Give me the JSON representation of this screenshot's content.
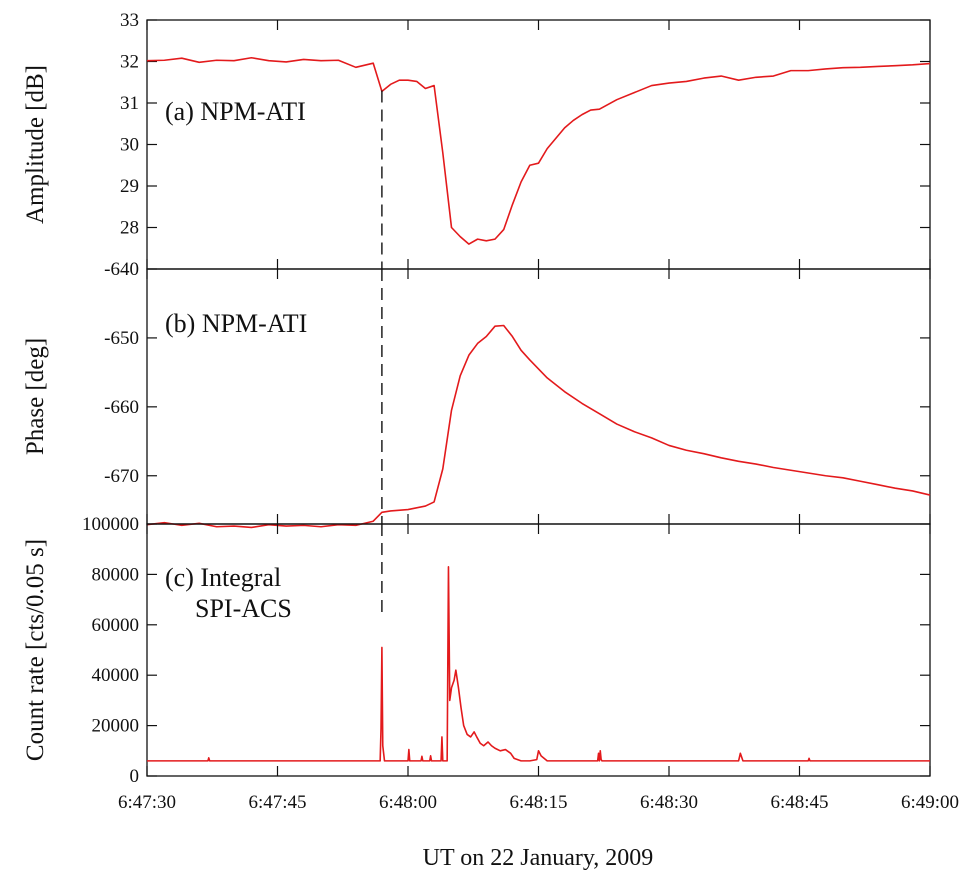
{
  "colors": {
    "series": "#e31a1c",
    "axis": "#111111",
    "marker": "#111111"
  },
  "xlabel": "UT on 22 January, 2009",
  "x_tick_labels": [
    "6:47:30",
    "6:47:45",
    "6:48:00",
    "6:48:15",
    "6:48:30",
    "6:48:45",
    "6:49:00"
  ],
  "chart_data": [
    {
      "type": "line",
      "panel_label": "(a) NPM-ATI",
      "ylabel": "Amplitude [dB]",
      "xlim": [
        "6:47:30",
        "6:49:00"
      ],
      "ylim": [
        27,
        33
      ],
      "yticks": [
        28,
        29,
        30,
        31,
        32,
        33
      ],
      "ytick_labels": [
        "28",
        "29",
        "30",
        "31",
        "32",
        "33"
      ],
      "marker_time": "6:47:57",
      "series": [
        {
          "x": [
            "6:47:30",
            "6:47:32",
            "6:47:34",
            "6:47:36",
            "6:47:38",
            "6:47:40",
            "6:47:42",
            "6:47:44",
            "6:47:46",
            "6:47:48",
            "6:47:50",
            "6:47:52",
            "6:47:54",
            "6:47:56",
            "6:47:57",
            "6:47:58",
            "6:47:59",
            "6:48:00",
            "6:48:01",
            "6:48:02",
            "6:48:03",
            "6:48:04",
            "6:48:05",
            "6:48:06",
            "6:48:07",
            "6:48:08",
            "6:48:09",
            "6:48:10",
            "6:48:11",
            "6:48:12",
            "6:48:13",
            "6:48:14",
            "6:48:15",
            "6:48:16",
            "6:48:17",
            "6:48:18",
            "6:48:19",
            "6:48:20",
            "6:48:21",
            "6:48:22",
            "6:48:24",
            "6:48:26",
            "6:48:28",
            "6:48:30",
            "6:48:32",
            "6:48:34",
            "6:48:36",
            "6:48:38",
            "6:48:40",
            "6:48:42",
            "6:48:44",
            "6:48:46",
            "6:48:48",
            "6:48:50",
            "6:48:52",
            "6:48:54",
            "6:48:56",
            "6:48:58",
            "6:49:00"
          ],
          "values": [
            32.02,
            32.03,
            32.08,
            31.98,
            32.03,
            32.02,
            32.09,
            32.02,
            31.99,
            32.05,
            32.02,
            32.03,
            31.86,
            31.96,
            31.28,
            31.45,
            31.55,
            31.55,
            31.52,
            31.35,
            31.42,
            29.8,
            28.0,
            27.78,
            27.6,
            27.72,
            27.68,
            27.72,
            27.95,
            28.55,
            29.1,
            29.5,
            29.55,
            29.9,
            30.15,
            30.4,
            30.58,
            30.72,
            30.83,
            30.85,
            31.08,
            31.25,
            31.42,
            31.48,
            31.52,
            31.6,
            31.65,
            31.55,
            31.62,
            31.65,
            31.78,
            31.78,
            31.82,
            31.85,
            31.86,
            31.88,
            31.9,
            31.92,
            31.95
          ]
        }
      ]
    },
    {
      "type": "line",
      "panel_label": "(b) NPM-ATI",
      "ylabel": "Phase [deg]",
      "xlim": [
        "6:47:30",
        "6:49:00"
      ],
      "ylim": [
        -677,
        -640
      ],
      "yticks": [
        -640,
        -650,
        -660,
        -670
      ],
      "ytick_labels": [
        "-640",
        "-650",
        "-660",
        "-670"
      ],
      "marker_time": "6:47:57",
      "series": [
        {
          "x": [
            "6:47:30",
            "6:47:32",
            "6:47:34",
            "6:47:36",
            "6:47:38",
            "6:47:40",
            "6:47:42",
            "6:47:44",
            "6:47:46",
            "6:47:48",
            "6:47:50",
            "6:47:52",
            "6:47:54",
            "6:47:56",
            "6:47:57",
            "6:47:58",
            "6:48:00",
            "6:48:02",
            "6:48:03",
            "6:48:04",
            "6:48:05",
            "6:48:06",
            "6:48:07",
            "6:48:08",
            "6:48:09",
            "6:48:10",
            "6:48:11",
            "6:48:12",
            "6:48:13",
            "6:48:14",
            "6:48:16",
            "6:48:18",
            "6:48:20",
            "6:48:22",
            "6:48:24",
            "6:48:26",
            "6:48:28",
            "6:48:30",
            "6:48:32",
            "6:48:34",
            "6:48:36",
            "6:48:38",
            "6:48:40",
            "6:48:42",
            "6:48:44",
            "6:48:46",
            "6:48:48",
            "6:48:50",
            "6:48:52",
            "6:48:54",
            "6:48:56",
            "6:48:58",
            "6:49:00"
          ],
          "values": [
            -677.1,
            -676.8,
            -677.2,
            -676.9,
            -677.4,
            -677.3,
            -677.5,
            -677.1,
            -677.3,
            -677.2,
            -677.4,
            -677.1,
            -677.2,
            -676.6,
            -675.3,
            -675.1,
            -674.9,
            -674.4,
            -673.8,
            -669,
            -660.5,
            -655.5,
            -652.5,
            -650.8,
            -649.8,
            -648.3,
            -648.2,
            -649.8,
            -651.8,
            -653.2,
            -655.8,
            -657.8,
            -659.5,
            -661,
            -662.5,
            -663.6,
            -664.5,
            -665.6,
            -666.3,
            -666.8,
            -667.4,
            -667.9,
            -668.3,
            -668.8,
            -669.2,
            -669.6,
            -670,
            -670.3,
            -670.8,
            -671.3,
            -671.8,
            -672.2,
            -672.8
          ]
        }
      ]
    },
    {
      "type": "line",
      "panel_label": "(c) Integral\nSPI-ACS",
      "ylabel": "Count rate [cts/0.05 s]",
      "xlim": [
        "6:47:30",
        "6:49:00"
      ],
      "ylim": [
        0,
        100000
      ],
      "yticks": [
        0,
        20000,
        40000,
        60000,
        80000,
        100000
      ],
      "ytick_labels": [
        "0",
        "20000",
        "40000",
        "60000",
        "80000",
        "100000"
      ],
      "marker_time": "6:47:57",
      "series": [
        {
          "x": [
            "6:47:30",
            "6:47:37",
            "6:47:37.1",
            "6:47:37.2",
            "6:47:56.8",
            "6:47:56.9",
            "6:47:57.0",
            "6:47:57.1",
            "6:47:57.3",
            "6:48:00",
            "6:48:00.1",
            "6:48:00.2",
            "6:48:01.5",
            "6:48:01.6",
            "6:48:01.7",
            "6:48:02.5",
            "6:48:02.6",
            "6:48:02.7",
            "6:48:03.8",
            "6:48:03.9",
            "6:48:04.0",
            "6:48:04.2",
            "6:48:04.5",
            "6:48:04.65",
            "6:48:04.8",
            "6:48:05.0",
            "6:48:05.3",
            "6:48:05.5",
            "6:48:05.8",
            "6:48:06.1",
            "6:48:06.4",
            "6:48:06.8",
            "6:48:07.2",
            "6:48:07.6",
            "6:48:07.9",
            "6:48:08.3",
            "6:48:08.7",
            "6:48:09.2",
            "6:48:09.6",
            "6:48:10.0",
            "6:48:10.6",
            "6:48:11.2",
            "6:48:11.8",
            "6:48:12.2",
            "6:48:13.0",
            "6:48:14.0",
            "6:48:14.8",
            "6:48:15.0",
            "6:48:15.3",
            "6:48:16.0",
            "6:48:21.8",
            "6:48:21.9",
            "6:48:22.0",
            "6:48:22.1",
            "6:48:22.2",
            "6:48:22.3",
            "6:48:38",
            "6:48:38.2",
            "6:48:38.5",
            "6:48:46",
            "6:48:46.1",
            "6:48:46.2",
            "6:49:00"
          ],
          "values": [
            6000,
            6000,
            7200,
            6000,
            6000,
            19000,
            51000,
            12000,
            6000,
            6000,
            10500,
            6000,
            6000,
            7800,
            6000,
            6000,
            8000,
            6000,
            6000,
            15500,
            6000,
            6000,
            6000,
            83000,
            30000,
            35000,
            38000,
            42000,
            35000,
            27000,
            20000,
            16500,
            15500,
            17500,
            15500,
            13000,
            12000,
            13500,
            12000,
            11000,
            10000,
            10500,
            9000,
            7000,
            6000,
            6000,
            6500,
            10000,
            8000,
            6000,
            6000,
            9000,
            6000,
            10000,
            6500,
            6000,
            6000,
            9000,
            6000,
            6000,
            7000,
            6000,
            6000
          ]
        }
      ]
    }
  ]
}
